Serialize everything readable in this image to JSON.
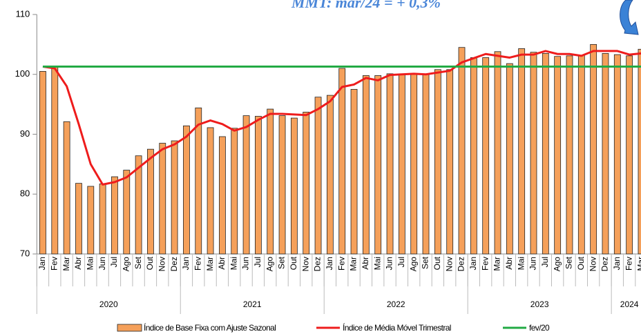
{
  "chart_data": {
    "type": "bar_line",
    "annotation": "MMT: mar/24 = + 0,3%",
    "categories": [
      "Jan",
      "Fev",
      "Mar",
      "Abr",
      "Mai",
      "Jun",
      "Jul",
      "Ago",
      "Set",
      "Out",
      "Nov",
      "Dez",
      "Jan",
      "Fev",
      "Mar",
      "Abr",
      "Mai",
      "Jun",
      "Jul",
      "Ago",
      "Set",
      "Out",
      "Nov",
      "Dez",
      "Jan",
      "Fev",
      "Mar",
      "Abr",
      "Mai",
      "Jun",
      "Jul",
      "Ago",
      "Set",
      "Out",
      "Nov",
      "Dez",
      "Jan",
      "Fev",
      "Mar",
      "Abr",
      "Mai",
      "Jun",
      "Jul",
      "Ago",
      "Set",
      "Out",
      "Nov",
      "Dez",
      "Jan",
      "Fev",
      "Mar"
    ],
    "year_groups": [
      "2020",
      "2021",
      "2022",
      "2023",
      "2024"
    ],
    "ylim": [
      70,
      110
    ],
    "yticks": [
      70,
      80,
      90,
      100,
      110
    ],
    "series": [
      {
        "name": "Índice de Base Fixa com Ajuste Sazonal",
        "kind": "bar",
        "color": "#f5a05a",
        "values": [
          100.5,
          101.3,
          92.1,
          81.8,
          81.3,
          81.7,
          82.9,
          84.0,
          86.4,
          87.5,
          88.5,
          88.9,
          91.4,
          94.4,
          91.1,
          89.6,
          91.0,
          93.1,
          93.0,
          94.2,
          93.1,
          92.7,
          93.7,
          96.2,
          96.5,
          101.0,
          97.5,
          99.8,
          99.8,
          100.1,
          100.1,
          100.1,
          100.0,
          100.8,
          100.8,
          104.5,
          102.8,
          102.8,
          103.8,
          101.8,
          104.3,
          103.7,
          103.5,
          103.0,
          103.1,
          103.2,
          105.0,
          103.5,
          103.3,
          103.1,
          104.2
        ]
      },
      {
        "name": "Índice de Média Móvel Trimestral",
        "kind": "line",
        "color": "#ee1c1c",
        "values": [
          101.3,
          101.0,
          98.0,
          91.7,
          85.0,
          81.6,
          82.0,
          82.8,
          84.4,
          86.0,
          87.5,
          88.3,
          89.6,
          91.6,
          92.3,
          91.7,
          90.6,
          91.2,
          92.4,
          93.4,
          93.4,
          93.3,
          93.2,
          94.2,
          95.5,
          97.9,
          98.3,
          99.4,
          99.0,
          99.9,
          100.0,
          100.1,
          100.0,
          100.3,
          100.6,
          102.0,
          102.7,
          103.4,
          103.1,
          102.8,
          103.3,
          103.3,
          103.9,
          103.4,
          103.4,
          103.1,
          103.9,
          103.9,
          103.9,
          103.3,
          103.5
        ]
      },
      {
        "name": "fev/20",
        "kind": "line",
        "color": "#22aa44",
        "values": [
          101.3,
          101.3,
          101.3,
          101.3,
          101.3,
          101.3,
          101.3,
          101.3,
          101.3,
          101.3,
          101.3,
          101.3,
          101.3,
          101.3,
          101.3,
          101.3,
          101.3,
          101.3,
          101.3,
          101.3,
          101.3,
          101.3,
          101.3,
          101.3,
          101.3,
          101.3,
          101.3,
          101.3,
          101.3,
          101.3,
          101.3,
          101.3,
          101.3,
          101.3,
          101.3,
          101.3,
          101.3,
          101.3,
          101.3,
          101.3,
          101.3,
          101.3,
          101.3,
          101.3,
          101.3,
          101.3,
          101.3,
          101.3,
          101.3,
          101.3,
          101.3
        ]
      }
    ]
  }
}
